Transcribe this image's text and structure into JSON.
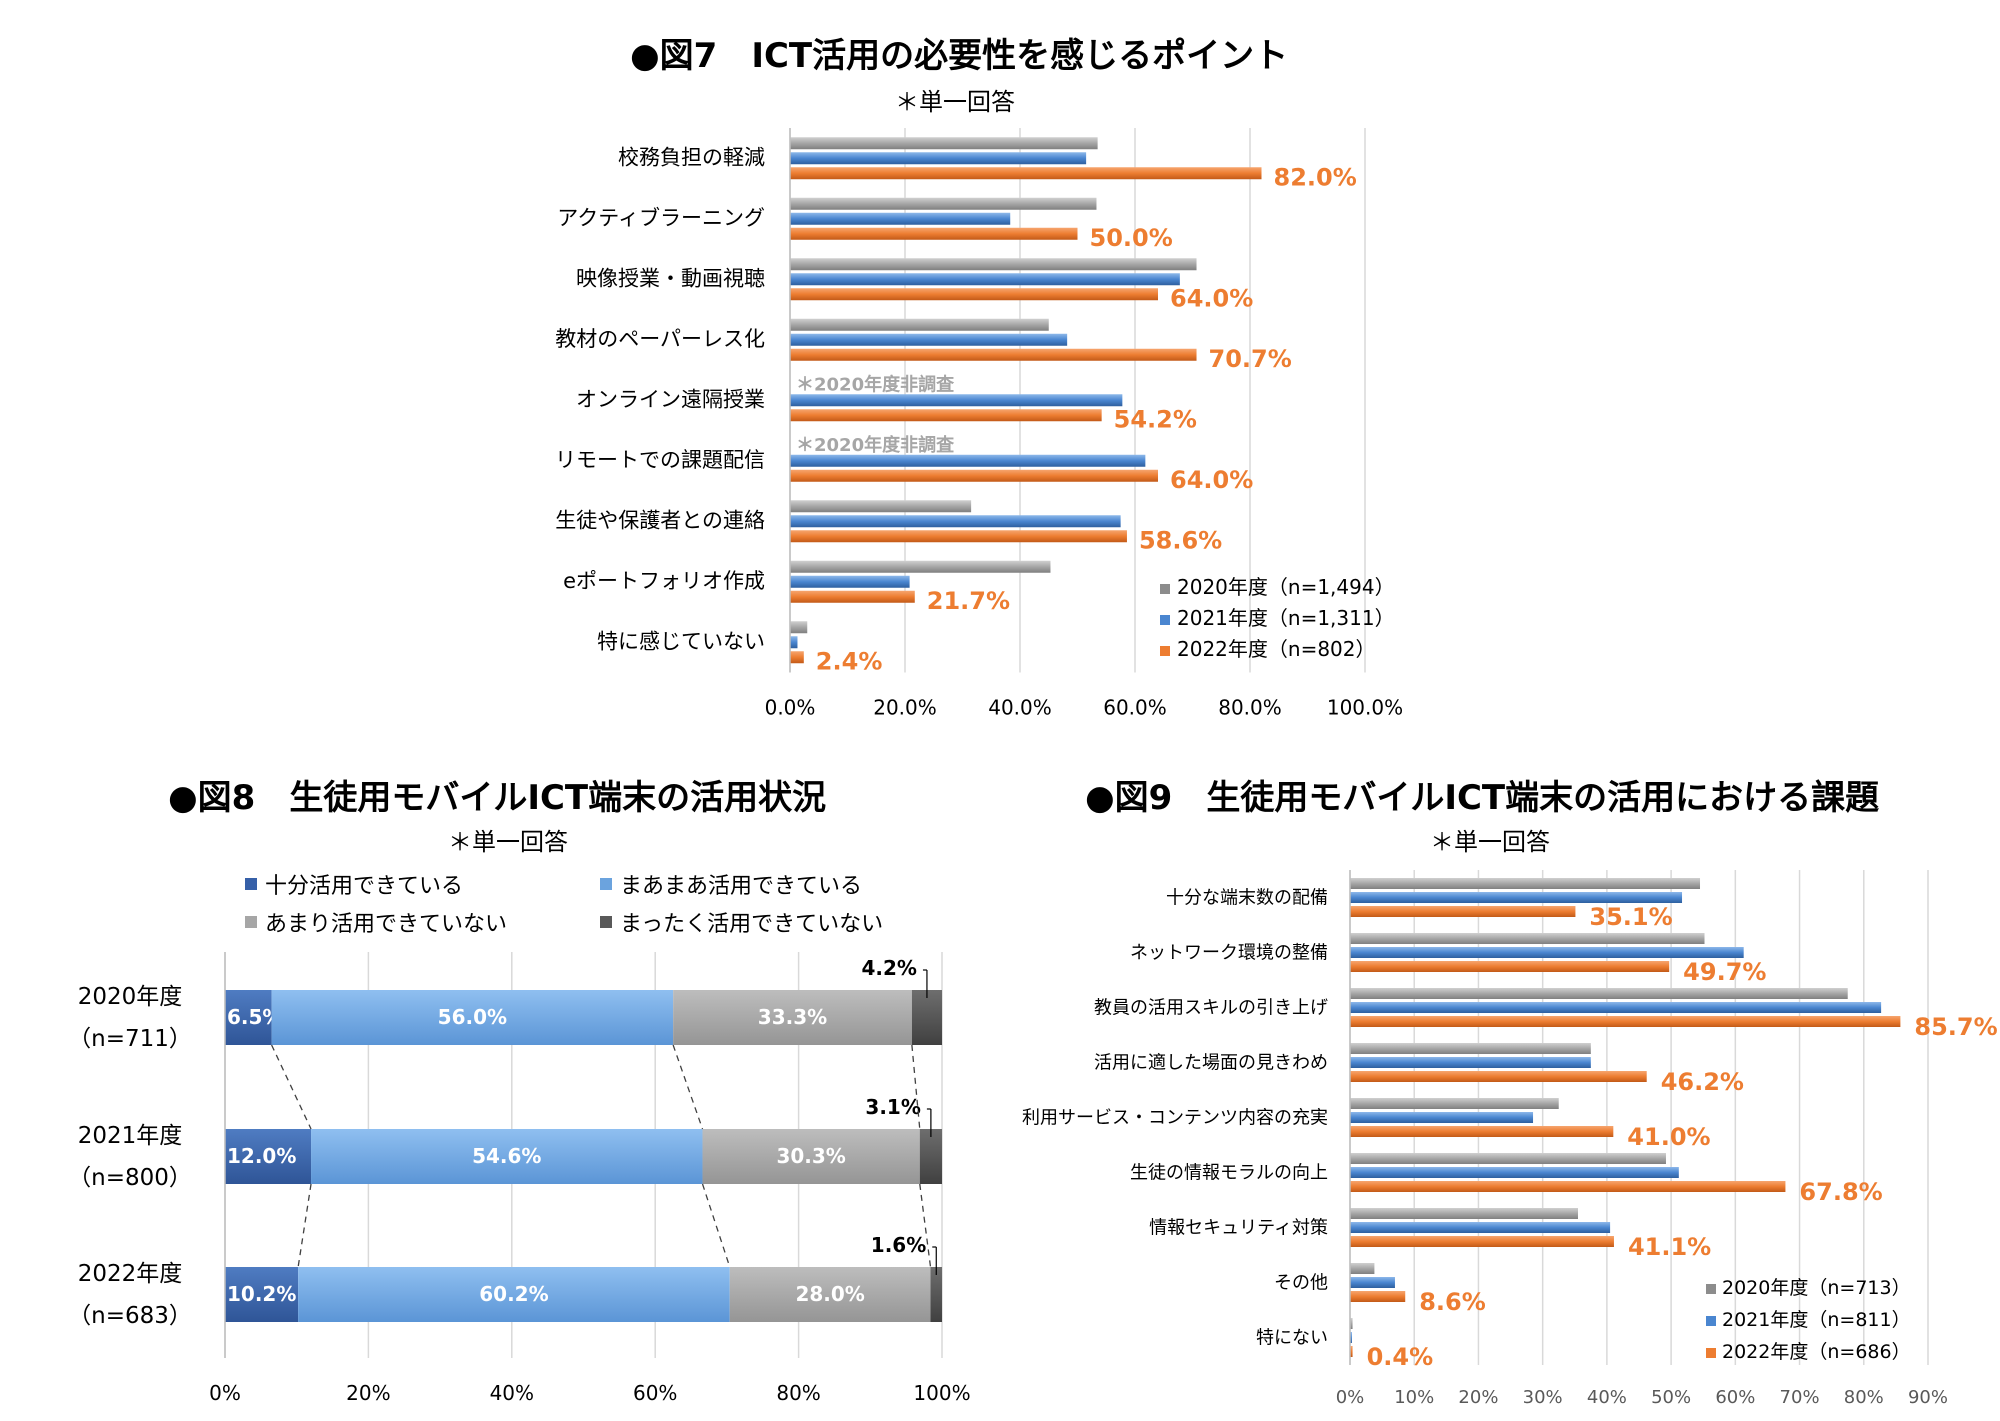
{
  "fig7": {
    "title": "●図7　ICT活用の必要性を感じるポイント",
    "subtitle": "＊単一回答",
    "note": "＊2020年度非調査",
    "legend": [
      "2020年度（n=1,494）",
      "2021年度（n=1,311）",
      "2022年度（n=802）"
    ],
    "ticks": [
      "0.0%",
      "20.0%",
      "40.0%",
      "60.0%",
      "80.0%",
      "100.0%"
    ]
  },
  "fig8": {
    "title": "●図8　生徒用モバイルICT端末の活用状況",
    "subtitle": "＊単一回答",
    "legend": [
      "十分活用できている",
      "まあまあ活用できている",
      "あまり活用できていない",
      "まったく活用できていない"
    ],
    "ticks": [
      "0%",
      "20%",
      "40%",
      "60%",
      "80%",
      "100%"
    ]
  },
  "fig9": {
    "title": "●図9　生徒用モバイルICT端末の活用における課題",
    "subtitle": "＊単一回答",
    "legend": [
      "2020年度（n=713）",
      "2021年度（n=811）",
      "2022年度（n=686）"
    ],
    "ticks": [
      "0%",
      "10%",
      "20%",
      "30%",
      "40%",
      "50%",
      "60%",
      "70%",
      "80%",
      "90%"
    ]
  },
  "colors": {
    "gray": "#a6a6a6",
    "blue": "#4a86d0",
    "orange": "#ed7d31",
    "dark_blue": "#3660a8",
    "light_blue": "#6ba3de",
    "mid_gray": "#a6a6a6",
    "dark_gray": "#595959",
    "label_orange": "#ed7d31",
    "note_gray": "#a6a6a6"
  },
  "chart_data": [
    {
      "id": "fig7",
      "type": "bar",
      "orientation": "horizontal",
      "categories": [
        "校務負担の軽減",
        "アクティブラーニング",
        "映像授業・動画視聴",
        "教材のペーパーレス化",
        "オンライン遠隔授業",
        "リモートでの課題配信",
        "生徒や保護者との連絡",
        "eポートフォリオ作成",
        "特に感じていない"
      ],
      "series": [
        {
          "name": "2020年度（n=1,494）",
          "values": [
            53.5,
            53.3,
            70.7,
            45.0,
            null,
            null,
            31.5,
            45.3,
            3.0
          ]
        },
        {
          "name": "2021年度（n=1,311）",
          "values": [
            51.5,
            38.3,
            67.8,
            48.2,
            57.8,
            61.8,
            57.5,
            20.8,
            1.3
          ]
        },
        {
          "name": "2022年度（n=802）",
          "values": [
            82.0,
            50.0,
            64.0,
            70.7,
            54.2,
            64.0,
            58.6,
            21.7,
            2.4
          ]
        }
      ],
      "labels_2022": [
        "82.0%",
        "50.0%",
        "64.0%",
        "70.7%",
        "54.2%",
        "64.0%",
        "58.6%",
        "21.7%",
        "2.4%"
      ],
      "xlim": [
        0,
        100
      ]
    },
    {
      "id": "fig8",
      "type": "bar",
      "orientation": "horizontal-stacked",
      "categories": [
        "2020年度",
        "2021年度",
        "2022年度"
      ],
      "category_n": [
        "（n=711）",
        "（n=800）",
        "（n=683）"
      ],
      "series": [
        {
          "name": "十分活用できている",
          "values": [
            6.5,
            12.0,
            10.2
          ],
          "labels": [
            "6.5%",
            "12.0%",
            "10.2%"
          ]
        },
        {
          "name": "まあまあ活用できている",
          "values": [
            56.0,
            54.6,
            60.2
          ],
          "labels": [
            "56.0%",
            "54.6%",
            "60.2%"
          ]
        },
        {
          "name": "あまり活用できていない",
          "values": [
            33.3,
            30.3,
            28.0
          ],
          "labels": [
            "33.3%",
            "30.3%",
            "28.0%"
          ]
        },
        {
          "name": "まったく活用できていない",
          "values": [
            4.2,
            3.1,
            1.6
          ],
          "labels": [
            "4.2%",
            "3.1%",
            "1.6%"
          ]
        }
      ],
      "xlim": [
        0,
        100
      ]
    },
    {
      "id": "fig9",
      "type": "bar",
      "orientation": "horizontal",
      "categories": [
        "十分な端末数の配備",
        "ネットワーク環境の整備",
        "教員の活用スキルの引き上げ",
        "活用に適した場面の見きわめ",
        "利用サービス・コンテンツ内容の充実",
        "生徒の情報モラルの向上",
        "情報セキュリティ対策",
        "その他",
        "特にない"
      ],
      "series": [
        {
          "name": "2020年度（n=713）",
          "values": [
            54.5,
            55.2,
            77.5,
            37.5,
            32.5,
            49.2,
            35.5,
            3.8,
            0.4
          ]
        },
        {
          "name": "2021年度（n=811）",
          "values": [
            51.7,
            61.3,
            82.7,
            37.5,
            28.5,
            51.2,
            40.5,
            7.0,
            0.3
          ]
        },
        {
          "name": "2022年度（n=686）",
          "values": [
            35.1,
            49.7,
            85.7,
            46.2,
            41.0,
            67.8,
            41.1,
            8.6,
            0.4
          ]
        }
      ],
      "labels_2022": [
        "35.1%",
        "49.7%",
        "85.7%",
        "46.2%",
        "41.0%",
        "67.8%",
        "41.1%",
        "8.6%",
        "0.4%"
      ],
      "xlim": [
        0,
        90
      ]
    }
  ]
}
